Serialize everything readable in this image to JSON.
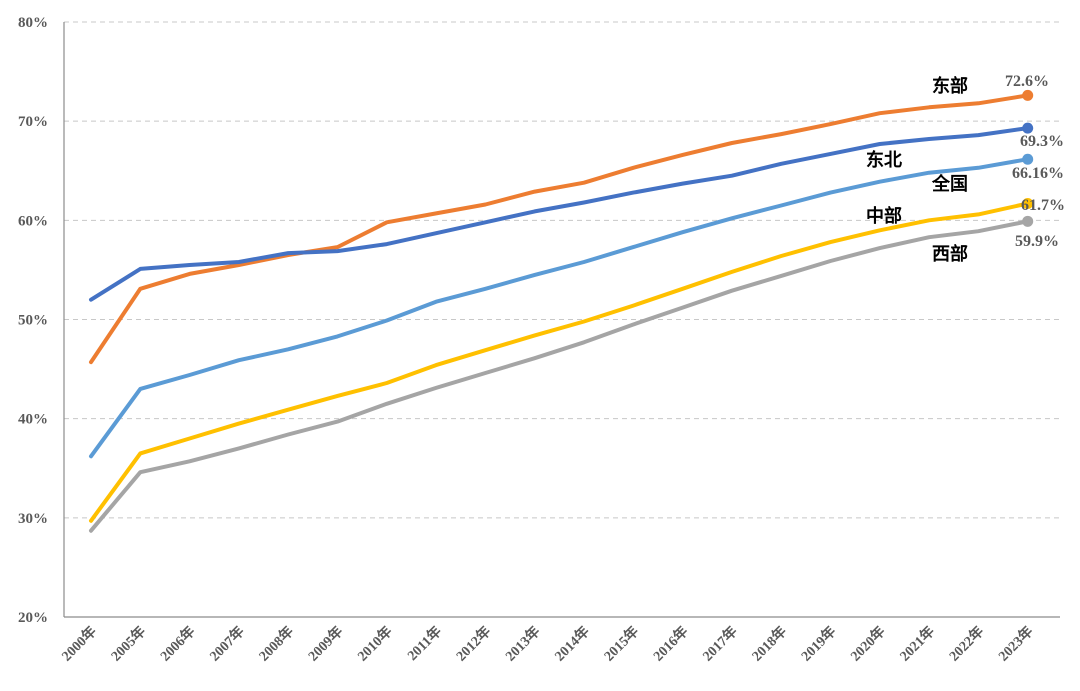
{
  "chart_data": {
    "type": "line",
    "title": "",
    "xlabel": "",
    "ylabel": "",
    "ylim": [
      20,
      80
    ],
    "yticks": [
      20,
      30,
      40,
      50,
      60,
      70,
      80
    ],
    "ytick_suffix": "%",
    "grid": true,
    "categories": [
      "2000年",
      "2005年",
      "2006年",
      "2007年",
      "2008年",
      "2009年",
      "2010年",
      "2011年",
      "2012年",
      "2013年",
      "2014年",
      "2015年",
      "2016年",
      "2017年",
      "2018年",
      "2019年",
      "2020年",
      "2021年",
      "2022年",
      "2023年"
    ],
    "series": [
      {
        "name": "东部",
        "color": "#ED7D31",
        "end_label": "72.6%",
        "values": [
          45.7,
          53.1,
          54.6,
          55.5,
          56.5,
          57.3,
          59.8,
          60.7,
          61.6,
          62.9,
          63.8,
          65.3,
          66.6,
          67.8,
          68.7,
          69.7,
          70.8,
          71.4,
          71.8,
          72.6
        ]
      },
      {
        "name": "东北",
        "color": "#4472C4",
        "end_label": "69.3%",
        "values": [
          52.0,
          55.1,
          55.5,
          55.8,
          56.7,
          56.9,
          57.6,
          58.7,
          59.8,
          60.9,
          61.8,
          62.8,
          63.7,
          64.5,
          65.7,
          66.7,
          67.7,
          68.2,
          68.6,
          69.3
        ]
      },
      {
        "name": "全国",
        "color": "#5B9BD5",
        "end_label": "66.16%",
        "values": [
          36.2,
          43.0,
          44.4,
          45.9,
          47.0,
          48.3,
          49.9,
          51.8,
          53.1,
          54.5,
          55.8,
          57.3,
          58.8,
          60.2,
          61.5,
          62.8,
          63.9,
          64.8,
          65.3,
          66.16
        ]
      },
      {
        "name": "中部",
        "color": "#FFC000",
        "end_label": "61.7%",
        "values": [
          29.7,
          36.5,
          38.0,
          39.5,
          40.9,
          42.3,
          43.6,
          45.4,
          46.9,
          48.4,
          49.8,
          51.4,
          53.1,
          54.8,
          56.4,
          57.8,
          59.0,
          60.0,
          60.6,
          61.7
        ]
      },
      {
        "name": "西部",
        "color": "#A5A5A5",
        "end_label": "59.9%",
        "values": [
          28.7,
          34.6,
          35.7,
          37.0,
          38.4,
          39.7,
          41.5,
          43.1,
          44.6,
          46.1,
          47.7,
          49.5,
          51.2,
          52.9,
          54.4,
          55.9,
          57.2,
          58.3,
          58.9,
          59.9
        ]
      }
    ]
  }
}
